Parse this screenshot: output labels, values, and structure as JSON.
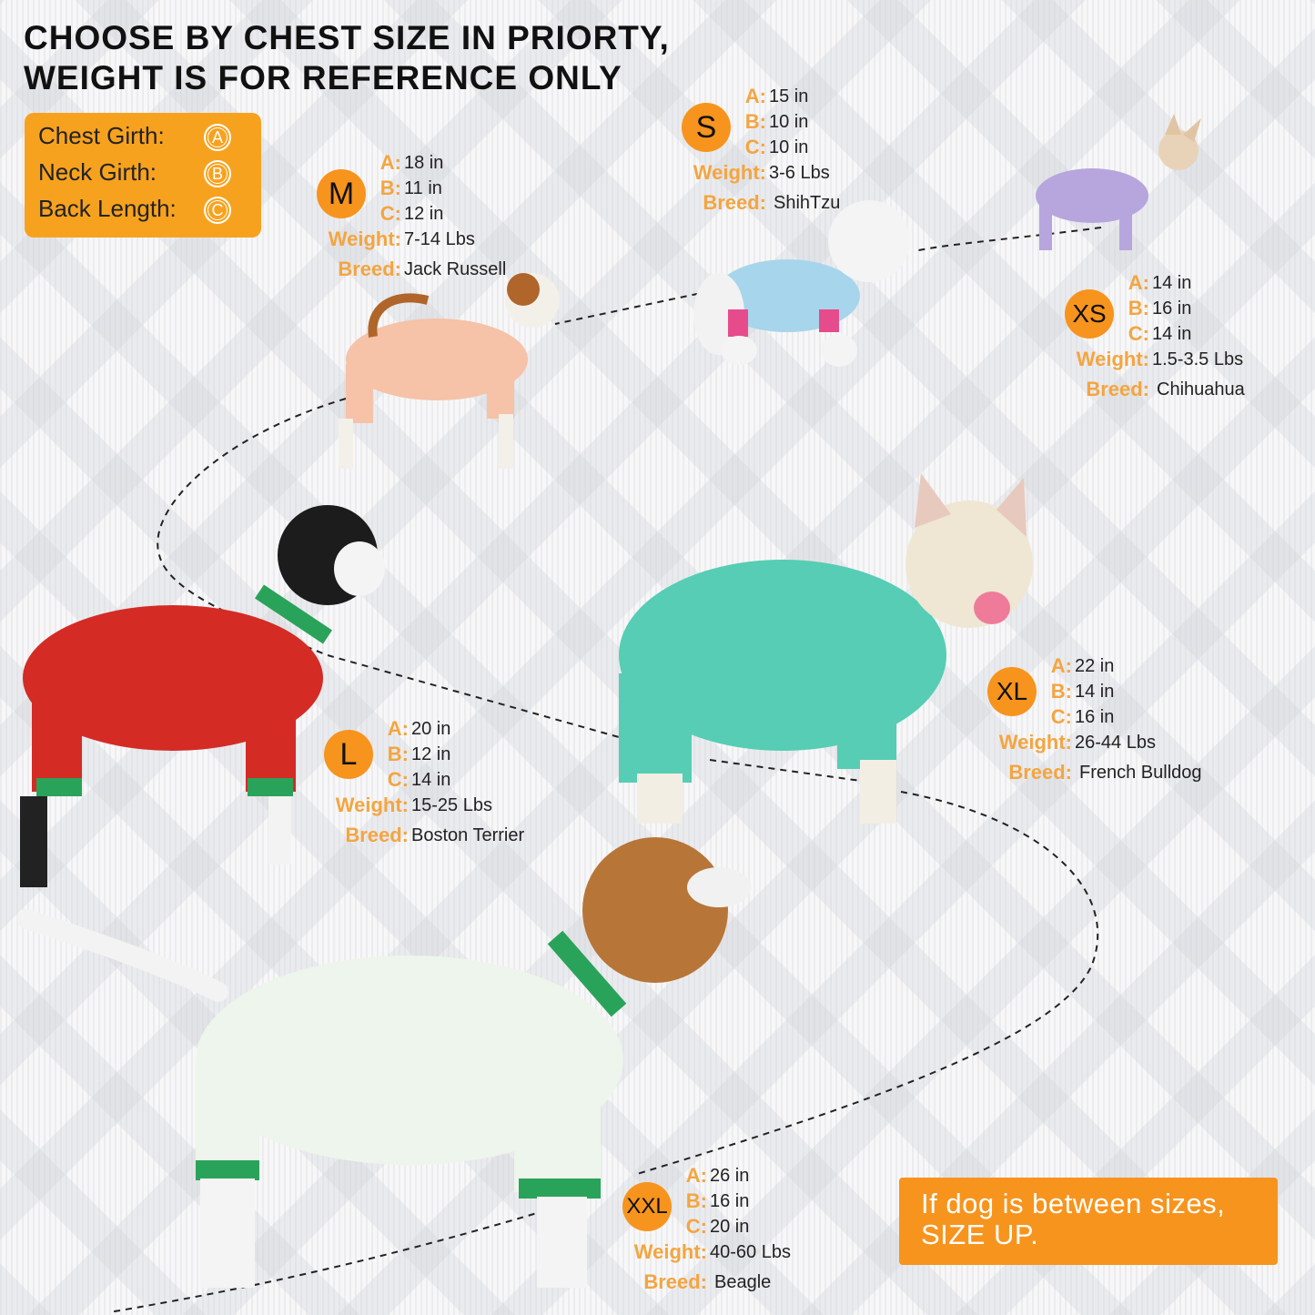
{
  "title": {
    "line1": "CHOOSE BY CHEST SIZE IN PRIORTY,",
    "line2": "WEIGHT IS FOR REFERENCE ONLY"
  },
  "legend": {
    "items": [
      {
        "label": "Chest Girth:",
        "mark": "A"
      },
      {
        "label": "Neck Girth:",
        "mark": "B"
      },
      {
        "label": "Back Length:",
        "mark": "C"
      }
    ]
  },
  "field_labels": {
    "a": "A:",
    "b": "B:",
    "c": "C:",
    "weight": "Weight:",
    "breed": "Breed:"
  },
  "sizes": {
    "xs": {
      "size": "XS",
      "a": "14 in",
      "b": "16 in",
      "c": "14 in",
      "weight": "1.5-3.5 Lbs",
      "breed": "Chihuahua"
    },
    "s": {
      "size": "S",
      "a": "15 in",
      "b": "10 in",
      "c": "10 in",
      "weight": "3-6 Lbs",
      "breed": "ShihTzu"
    },
    "m": {
      "size": "M",
      "a": "18 in",
      "b": "11 in",
      "c": "12 in",
      "weight": "7-14 Lbs",
      "breed": "Jack Russell"
    },
    "l": {
      "size": "L",
      "a": "20 in",
      "b": "12 in",
      "c": "14 in",
      "weight": "15-25 Lbs",
      "breed": "Boston Terrier"
    },
    "xl": {
      "size": "XL",
      "a": "22 in",
      "b": "14 in",
      "c": "16 in",
      "weight": "26-44 Lbs",
      "breed": "French Bulldog"
    },
    "xxl": {
      "size": "XXL",
      "a": "26 in",
      "b": "16 in",
      "c": "20 in",
      "weight": "40-60 Lbs",
      "breed": "Beagle"
    }
  },
  "note": {
    "line1": "If dog is between sizes,",
    "line2": "SIZE UP."
  },
  "colors": {
    "accent": "#f7941d",
    "label": "#f4a540",
    "text": "#222222"
  }
}
